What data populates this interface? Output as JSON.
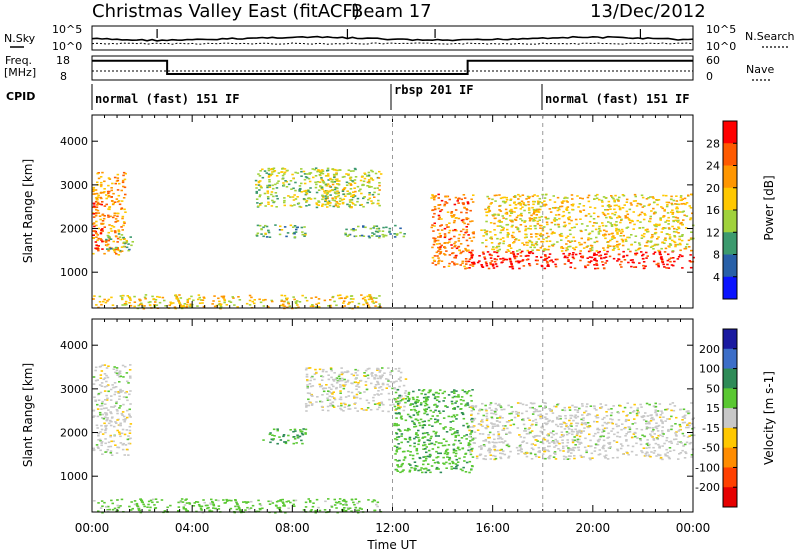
{
  "header": {
    "title": "Christmas Valley East (fitACF)",
    "beam": "Beam 17",
    "date": "13/Dec/2012"
  },
  "top_panels": {
    "nsky_label": "N.Sky",
    "nsearch_label": "N.Search",
    "noise_ticks_left": [
      "10^5",
      "10^0"
    ],
    "noise_ticks_right": [
      "10^5",
      "10^0"
    ],
    "freq_label": "Freq.",
    "freq_unit": "[MHz]",
    "freq_ticks": [
      "18",
      "8"
    ],
    "nave_label": "Nave",
    "nave_ticks": [
      "60",
      "0"
    ],
    "cpid_label": "CPID",
    "cpid_segments": [
      {
        "label": "normal (fast) 151 IF",
        "start_h": 0,
        "end_h": 12
      },
      {
        "label": "rbsp 201 IF",
        "start_h": 12,
        "end_h": 18
      },
      {
        "label": "normal (fast) 151 IF",
        "start_h": 18,
        "end_h": 24
      }
    ]
  },
  "panels": {
    "power": {
      "ylabel": "Slant Range [km]",
      "cbar_label": "Power [dB]",
      "cbar_ticks": [
        "28",
        "24",
        "20",
        "16",
        "12",
        "8",
        "4"
      ],
      "cbar_colors": [
        "#ff0000",
        "#ff5a00",
        "#ff9600",
        "#ffc800",
        "#a0d23c",
        "#3c9a6e",
        "#2860a8",
        "#0a14ff"
      ]
    },
    "velocity": {
      "ylabel": "Slant Range [km]",
      "cbar_label": "Velocity [m s-1]",
      "cbar_ticks": [
        "200",
        "100",
        "50",
        "15",
        "-15",
        "-50",
        "-100",
        "-200"
      ],
      "cbar_colors": [
        "#1a1aa0",
        "#3c6ec8",
        "#2e8b57",
        "#5ac832",
        "#c8c8c8",
        "#ffc800",
        "#ff8c00",
        "#ff4000",
        "#e60000"
      ]
    },
    "y_ticks": [
      "1000",
      "2000",
      "3000",
      "4000"
    ],
    "x_ticks": [
      "00:00",
      "04:00",
      "08:00",
      "12:00",
      "16:00",
      "20:00",
      "00:00"
    ],
    "xlabel": "Time UT"
  },
  "chart_data": {
    "type": "heatmap",
    "title": "Christmas Valley East (fitACF) Beam 17 13/Dec/2012",
    "xlabel": "Time UT",
    "ylabel": "Slant Range [km]",
    "xlim_hours": [
      0,
      24
    ],
    "ylim_km": [
      180,
      4600
    ],
    "frequency_mhz": [
      {
        "start_h": 0,
        "end_h": 3.0,
        "value": 16
      },
      {
        "start_h": 3.0,
        "end_h": 15.0,
        "value": 10.5
      },
      {
        "start_h": 15.0,
        "end_h": 24,
        "value": 16
      }
    ],
    "power_regions": [
      {
        "t0": 0.0,
        "t1": 1.3,
        "r0": 1400,
        "r1": 3300,
        "level_db": 20
      },
      {
        "t0": 0.0,
        "t1": 0.4,
        "r0": 1500,
        "r1": 2600,
        "level_db": 26
      },
      {
        "t0": 0.5,
        "t1": 1.6,
        "r0": 1500,
        "r1": 1900,
        "level_db": 10
      },
      {
        "t0": 6.5,
        "t1": 8.5,
        "r0": 1800,
        "r1": 2100,
        "level_db": 10
      },
      {
        "t0": 6.5,
        "t1": 10.5,
        "r0": 2500,
        "r1": 3400,
        "level_db": 12
      },
      {
        "t0": 9.0,
        "t1": 11.5,
        "r0": 2500,
        "r1": 3400,
        "level_db": 14
      },
      {
        "t0": 10.0,
        "t1": 12.5,
        "r0": 1800,
        "r1": 2100,
        "level_db": 8
      },
      {
        "t0": 13.5,
        "t1": 15.2,
        "r0": 1100,
        "r1": 2800,
        "level_db": 22
      },
      {
        "t0": 15.0,
        "t1": 24,
        "r0": 1100,
        "r1": 1500,
        "level_db": 28
      },
      {
        "t0": 15.5,
        "t1": 24,
        "r0": 1500,
        "r1": 2800,
        "level_db": 16
      },
      {
        "t0": 0.0,
        "t1": 11.5,
        "r0": 180,
        "r1": 500,
        "level_db": 16
      }
    ],
    "velocity_regions": [
      {
        "t0": 0.0,
        "t1": 1.5,
        "r0": 1500,
        "r1": 3600,
        "velocity_ms": 0
      },
      {
        "t0": 6.8,
        "t1": 8.5,
        "r0": 1750,
        "r1": 2100,
        "velocity_ms": 50
      },
      {
        "t0": 8.5,
        "t1": 12.5,
        "r0": 2500,
        "r1": 3500,
        "velocity_ms": 0
      },
      {
        "t0": 12.0,
        "t1": 15.2,
        "r0": 1100,
        "r1": 3000,
        "velocity_ms": 40
      },
      {
        "t0": 15.0,
        "t1": 24,
        "r0": 1400,
        "r1": 2700,
        "velocity_ms": 0
      },
      {
        "t0": 0.0,
        "t1": 11.5,
        "r0": 180,
        "r1": 500,
        "velocity_ms": 30
      }
    ]
  }
}
